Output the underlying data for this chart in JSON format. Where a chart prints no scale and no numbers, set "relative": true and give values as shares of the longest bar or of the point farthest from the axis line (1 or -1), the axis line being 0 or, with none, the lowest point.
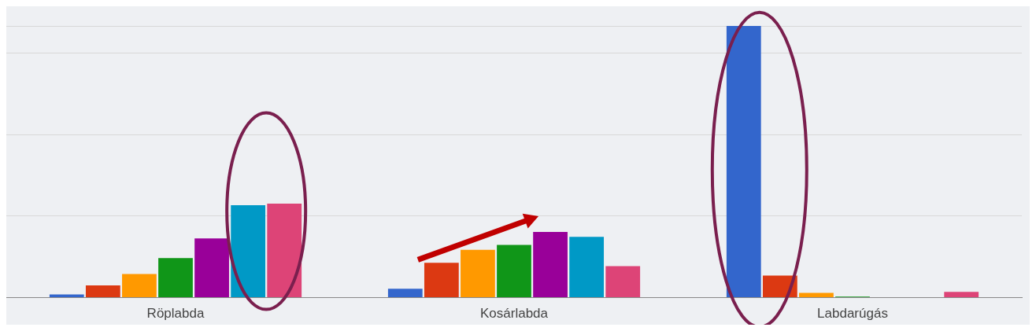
{
  "chart_data": {
    "type": "bar",
    "relative": true,
    "grid": "y",
    "legend": false,
    "categories": [
      "Röplabda",
      "Kosárlabda",
      "Labdarúgás"
    ],
    "series": [
      {
        "color": "#3366cc",
        "values": [
          0.012,
          0.033,
          1
        ]
      },
      {
        "color": "#dc3912",
        "values": [
          0.045,
          0.128,
          0.081
        ]
      },
      {
        "color": "#ff9900",
        "values": [
          0.087,
          0.176,
          0.018
        ]
      },
      {
        "color": "#109618",
        "values": [
          0.146,
          0.194,
          0.004
        ]
      },
      {
        "color": "#990099",
        "values": [
          0.218,
          0.242,
          null
        ]
      },
      {
        "color": "#0099c6",
        "values": [
          0.34,
          0.224,
          null
        ]
      },
      {
        "color": "#dd4477",
        "values": [
          0.346,
          0.116,
          0.021
        ]
      }
    ]
  }
}
